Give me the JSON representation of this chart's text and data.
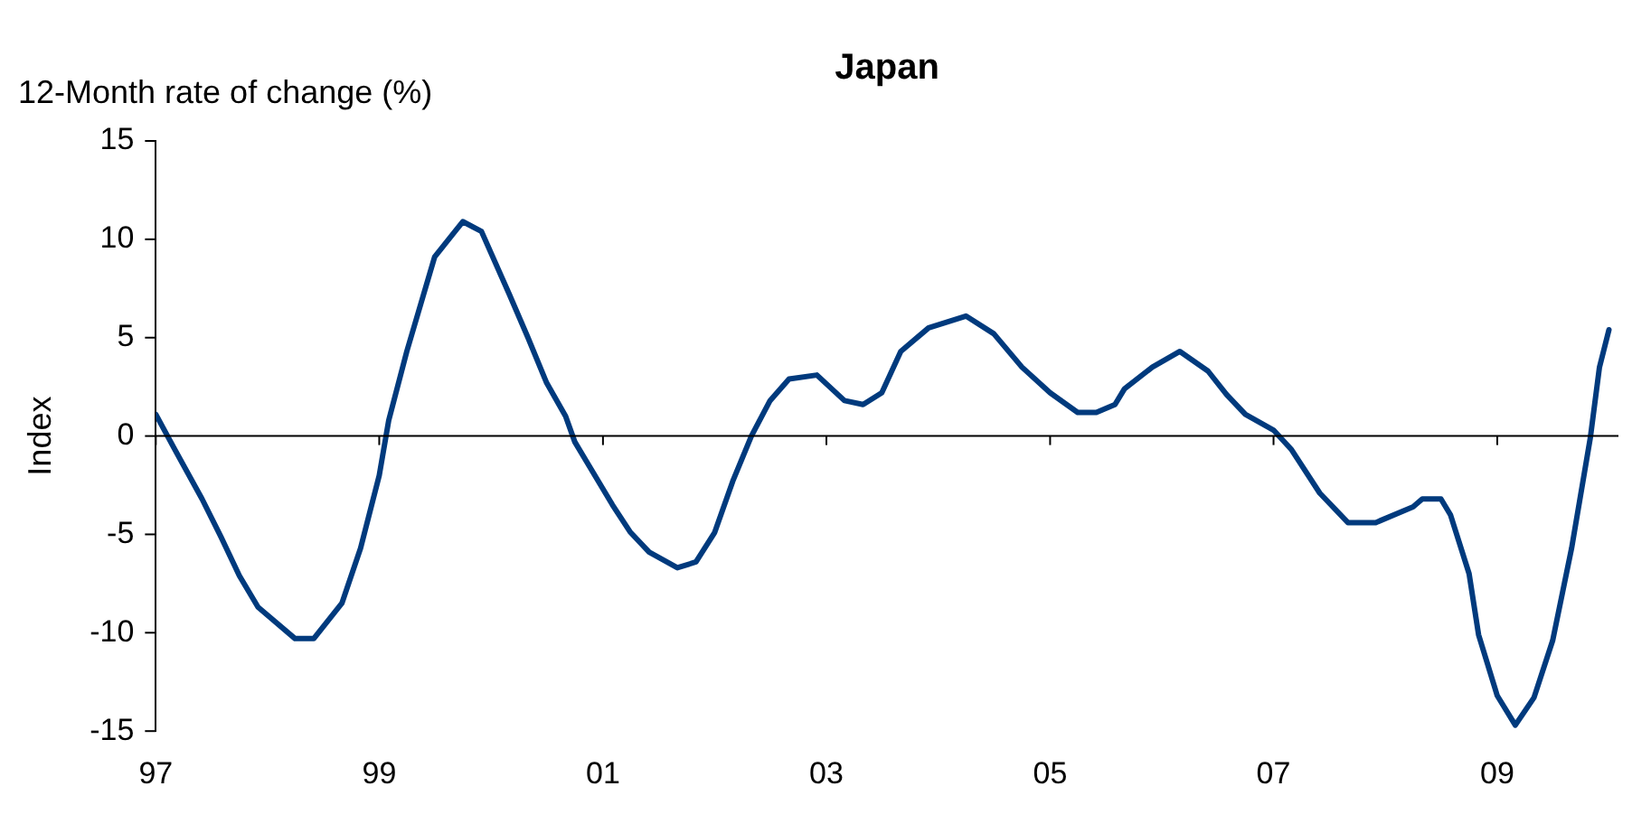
{
  "chart_data": {
    "type": "line",
    "title": "Japan",
    "subtitle": "12-Month rate of change (%)",
    "ylabel": "Index",
    "x": [
      "1997-01",
      "1997-03",
      "1997-06",
      "1997-08",
      "1997-10",
      "1997-12",
      "1998-04",
      "1998-06",
      "1998-09",
      "1998-11",
      "1999-01",
      "1999-02",
      "1999-04",
      "1999-07",
      "1999-10",
      "1999-12",
      "2000-03",
      "2000-05",
      "2000-07",
      "2000-09",
      "2000-10",
      "2001-02",
      "2001-04",
      "2001-06",
      "2001-09",
      "2001-11",
      "2002-01",
      "2002-03",
      "2002-05",
      "2002-07",
      "2002-09",
      "2002-12",
      "2003-03",
      "2003-05",
      "2003-07",
      "2003-09",
      "2003-12",
      "2004-04",
      "2004-07",
      "2004-10",
      "2005-01",
      "2005-04",
      "2005-06",
      "2005-08",
      "2005-09",
      "2005-12",
      "2006-03",
      "2006-06",
      "2006-08",
      "2006-10",
      "2007-01",
      "2007-03",
      "2007-06",
      "2007-09",
      "2007-12",
      "2008-04",
      "2008-05",
      "2008-07",
      "2008-08",
      "2008-10",
      "2008-11",
      "2009-01",
      "2009-03",
      "2009-05",
      "2009-07",
      "2009-09",
      "2009-11",
      "2009-12",
      "2010-01"
    ],
    "series": [
      {
        "color": "#003a7d",
        "values": [
          1.1,
          -0.6,
          -3.2,
          -5.1,
          -7.1,
          -8.7,
          -10.3,
          -10.3,
          -8.5,
          -5.7,
          -2.0,
          0.8,
          4.3,
          9.1,
          10.9,
          10.4,
          7.2,
          5.0,
          2.7,
          1.0,
          -0.3,
          -3.5,
          -4.9,
          -5.9,
          -6.7,
          -6.4,
          -4.9,
          -2.3,
          0.0,
          1.8,
          2.9,
          3.1,
          1.8,
          1.6,
          2.2,
          4.3,
          5.5,
          6.1,
          5.2,
          3.5,
          2.2,
          1.2,
          1.2,
          1.6,
          2.4,
          3.5,
          4.3,
          3.3,
          2.1,
          1.1,
          0.3,
          -0.7,
          -2.9,
          -4.4,
          -4.4,
          -3.6,
          -3.2,
          -3.2,
          -4.0,
          -7.0,
          -10.1,
          -13.2,
          -14.7,
          -13.3,
          -10.4,
          -5.7,
          -0.1,
          3.5,
          5.4
        ]
      }
    ],
    "xlim": [
      "1997-01",
      "2010-02"
    ],
    "xticks": [
      {
        "value": "1997-01",
        "label": "97"
      },
      {
        "value": "1999-01",
        "label": "99"
      },
      {
        "value": "2001-01",
        "label": "01"
      },
      {
        "value": "2003-01",
        "label": "03"
      },
      {
        "value": "2005-01",
        "label": "05"
      },
      {
        "value": "2007-01",
        "label": "07"
      },
      {
        "value": "2009-01",
        "label": "09"
      }
    ],
    "ylim": [
      -15,
      15
    ],
    "yticks": [
      -15,
      -10,
      -5,
      0,
      5,
      10,
      15
    ],
    "ref_lines": [
      {
        "axis": "y",
        "value": 0,
        "color": "#000000"
      }
    ],
    "grid": false,
    "legend": false,
    "marker": "none",
    "line_style": "solid"
  }
}
